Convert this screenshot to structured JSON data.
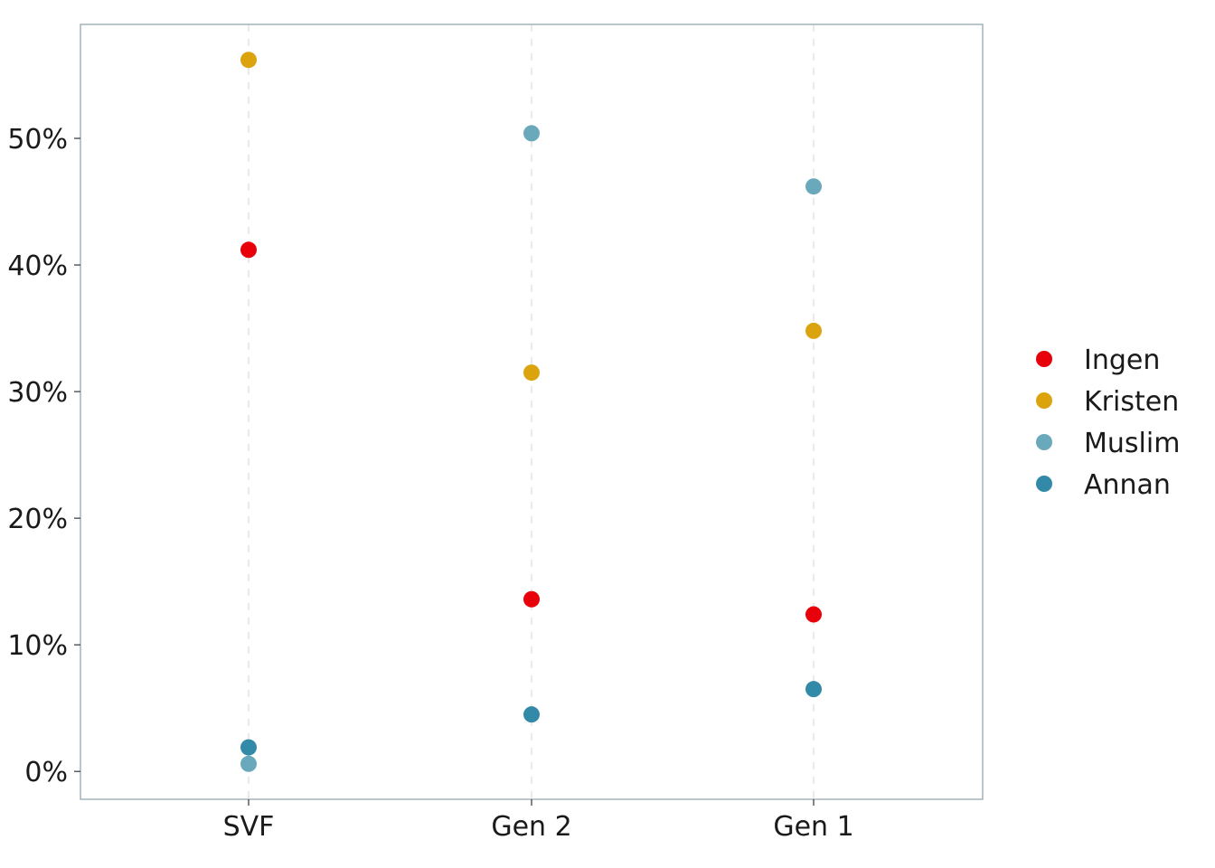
{
  "chart_data": {
    "type": "scatter",
    "title": "",
    "xlabel": "",
    "ylabel": "",
    "categories": [
      "SVF",
      "Gen 2",
      "Gen 1"
    ],
    "y_format": "percent",
    "ylim": [
      -0.022,
      0.59
    ],
    "y_ticks": [
      0,
      0.1,
      0.2,
      0.3,
      0.4,
      0.5
    ],
    "y_tick_labels": [
      "0%",
      "10%",
      "20%",
      "30%",
      "40%",
      "50%"
    ],
    "grid": "vertical dashed at categories",
    "legend_position": "right",
    "series": [
      {
        "name": "Ingen",
        "color": "#e8000b",
        "values": [
          0.412,
          0.136,
          0.124
        ]
      },
      {
        "name": "Kristen",
        "color": "#dba40e",
        "values": [
          0.562,
          0.315,
          0.348
        ]
      },
      {
        "name": "Muslim",
        "color": "#6aa9bb",
        "values": [
          0.006,
          0.504,
          0.462
        ]
      },
      {
        "name": "Annan",
        "color": "#338aa8",
        "values": [
          0.019,
          0.045,
          0.065
        ]
      }
    ]
  }
}
